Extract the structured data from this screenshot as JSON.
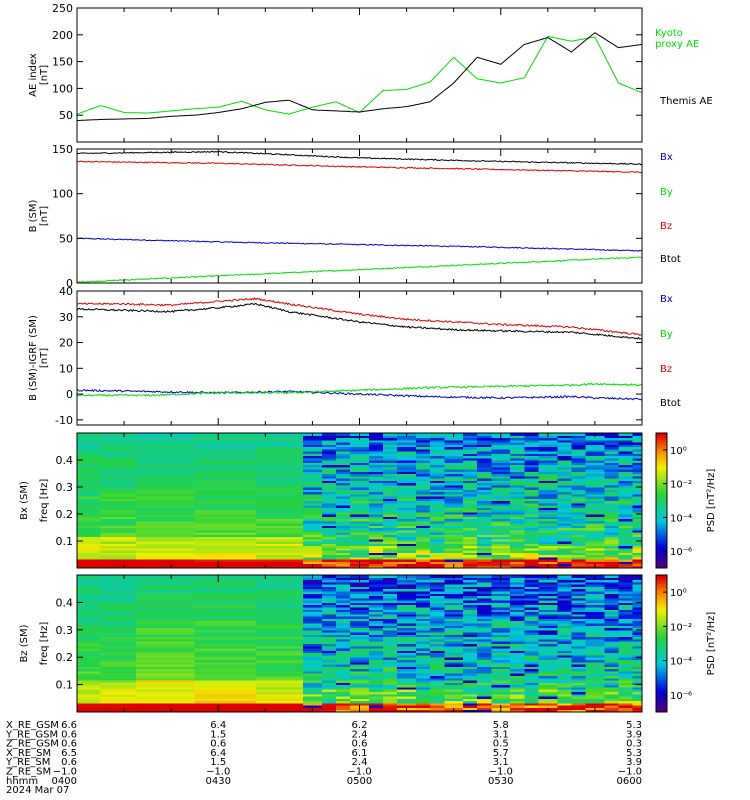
{
  "chart_data": [
    {
      "type": "line",
      "ylabel": "AE index",
      "yunits": "[nT]",
      "ylim": [
        0,
        250
      ],
      "yticks": [
        0,
        50,
        100,
        150,
        200,
        250
      ],
      "ytick_labels": [
        "",
        "50",
        "100",
        "150",
        "200",
        "250"
      ],
      "x_range": [
        "04:00",
        "06:00"
      ],
      "legend_placement": "right",
      "series": [
        {
          "name": "Kyoto\nproxy AE",
          "color": "#00dd00",
          "x": [
            0,
            5,
            10,
            15,
            20,
            25,
            30,
            35,
            40,
            45,
            50,
            55,
            60,
            65,
            70,
            75,
            80,
            85,
            90,
            95,
            100,
            105,
            110,
            115,
            120
          ],
          "y": [
            52,
            68,
            55,
            54,
            58,
            62,
            65,
            76,
            60,
            52,
            65,
            75,
            55,
            96,
            98,
            112,
            158,
            118,
            110,
            120,
            197,
            188,
            196,
            110,
            92
          ]
        },
        {
          "name": "Themis AE",
          "color": "#000000",
          "x": [
            0,
            5,
            10,
            15,
            20,
            25,
            30,
            35,
            40,
            45,
            50,
            55,
            60,
            65,
            70,
            75,
            80,
            85,
            90,
            95,
            100,
            105,
            110,
            115,
            120
          ],
          "y": [
            40,
            42,
            43,
            44,
            48,
            50,
            55,
            62,
            74,
            78,
            60,
            58,
            56,
            62,
            66,
            75,
            110,
            158,
            145,
            182,
            195,
            168,
            204,
            176,
            182
          ]
        }
      ]
    },
    {
      "type": "line",
      "ylabel": "B (SM)",
      "yunits": "[nT]",
      "ylim": [
        0,
        150
      ],
      "yticks": [
        0,
        50,
        100,
        150
      ],
      "ytick_labels": [
        "0",
        "50",
        "100",
        "150"
      ],
      "legend_placement": "right",
      "series": [
        {
          "name": "Bx",
          "color": "#0000cc",
          "x": [
            0,
            30,
            60,
            90,
            120
          ],
          "y": [
            50,
            46,
            43,
            40,
            36
          ]
        },
        {
          "name": "By",
          "color": "#00dd00",
          "x": [
            0,
            30,
            60,
            90,
            120
          ],
          "y": [
            1,
            8,
            15,
            22,
            29
          ]
        },
        {
          "name": "Bz",
          "color": "#dd0000",
          "x": [
            0,
            30,
            60,
            90,
            120
          ],
          "y": [
            136,
            134,
            130,
            127,
            124
          ]
        },
        {
          "name": "Btot",
          "color": "#000000",
          "x": [
            0,
            30,
            60,
            90,
            120
          ],
          "y": [
            145,
            147,
            140,
            136,
            133
          ]
        }
      ]
    },
    {
      "type": "line",
      "ylabel": "B (SM)-IGRF (SM)",
      "yunits": "[nT]",
      "ylim": [
        -12,
        40
      ],
      "yticks": [
        -10,
        0,
        10,
        20,
        30,
        40
      ],
      "ytick_labels": [
        "-10",
        "0",
        "10",
        "20",
        "30",
        "40"
      ],
      "legend_placement": "right",
      "series": [
        {
          "name": "Bx",
          "color": "#0000cc",
          "x": [
            0,
            15,
            30,
            45,
            60,
            75,
            90,
            105,
            110,
            120
          ],
          "y": [
            1.5,
            1,
            0.5,
            1,
            0,
            -1,
            -1.5,
            -1,
            -1.5,
            -2
          ]
        },
        {
          "name": "By",
          "color": "#00dd00",
          "x": [
            0,
            15,
            30,
            45,
            60,
            75,
            90,
            105,
            110,
            120
          ],
          "y": [
            -0.5,
            -0.5,
            0.5,
            0.5,
            1.5,
            2.5,
            3,
            3.5,
            4,
            3.5
          ]
        },
        {
          "name": "Bz",
          "color": "#dd0000",
          "x": [
            0,
            10,
            20,
            30,
            38,
            45,
            60,
            70,
            80,
            90,
            105,
            120
          ],
          "y": [
            35,
            35,
            34.5,
            36,
            37,
            35,
            31,
            29,
            28,
            27,
            26,
            23
          ]
        },
        {
          "name": "Btot",
          "color": "#000000",
          "x": [
            0,
            10,
            20,
            30,
            38,
            45,
            60,
            70,
            80,
            90,
            105,
            120
          ],
          "y": [
            33,
            32.5,
            32,
            33.5,
            35,
            32,
            28,
            26,
            25,
            24.5,
            24,
            21.5
          ]
        }
      ]
    },
    {
      "type": "heatmap",
      "ylabel": "Bx (SM)",
      "ylabel2": "freq",
      "yunits": "[Hz]",
      "ylim": [
        0,
        0.5
      ],
      "yticks": [
        0.1,
        0.2,
        0.3,
        0.4
      ],
      "ytick_labels": [
        "0.1",
        "0.2",
        "0.3",
        "0.4"
      ],
      "colorbar": {
        "label": "PSD [nT²/Hz]",
        "ticks": [
          "10⁰",
          "10⁻²",
          "10⁻⁴",
          "10⁻⁶"
        ],
        "range_log10": [
          -7,
          1
        ]
      }
    },
    {
      "type": "heatmap",
      "ylabel": "Bz (SM)",
      "ylabel2": "freq",
      "yunits": "[Hz]",
      "ylim": [
        0,
        0.5
      ],
      "yticks": [
        0.1,
        0.2,
        0.3,
        0.4
      ],
      "ytick_labels": [
        "0.1",
        "0.2",
        "0.3",
        "0.4"
      ],
      "colorbar": {
        "label": "PSD [nT²/Hz]",
        "ticks": [
          "10⁰",
          "10⁻²",
          "10⁻⁴",
          "10⁻⁶"
        ],
        "range_log10": [
          -7,
          1
        ]
      }
    }
  ],
  "orbit_table": {
    "rows": [
      {
        "label": "X_RE_GSM",
        "values": [
          "6.6",
          "6.4",
          "6.2",
          "5.8",
          "5.3"
        ]
      },
      {
        "label": "Y_RE_GSM",
        "values": [
          "0.6",
          "1.5",
          "2.4",
          "3.1",
          "3.9"
        ]
      },
      {
        "label": "Z_RE_GSM",
        "values": [
          "0.6",
          "0.6",
          "0.6",
          "0.5",
          "0.3"
        ]
      },
      {
        "label": "X_RE_SM",
        "values": [
          "6.5",
          "6.4",
          "6.1",
          "5.7",
          "5.3"
        ]
      },
      {
        "label": "Y_RE_SM",
        "values": [
          "0.6",
          "1.5",
          "2.4",
          "3.1",
          "3.9"
        ]
      },
      {
        "label": "Z_RE_SM",
        "values": [
          "−1.0",
          "−1.0",
          "−1.0",
          "−1.0",
          "−1.0"
        ]
      },
      {
        "label": "hhmm",
        "values": [
          "0400",
          "0430",
          "0500",
          "0530",
          "0600"
        ]
      }
    ],
    "date": "2024 Mar 07"
  }
}
